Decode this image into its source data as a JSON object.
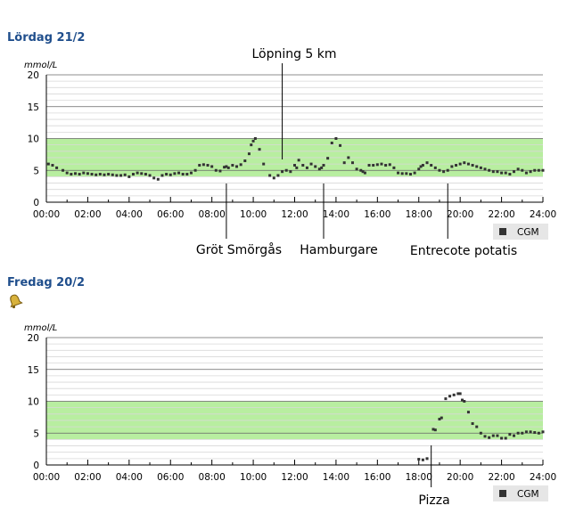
{
  "days": [
    {
      "title": "Lördag 21/2",
      "has_bell": false,
      "chart_data": {
        "type": "scatter",
        "title": "",
        "ylabel": "mmol/L",
        "xlabel": "",
        "xlim": [
          0,
          24
        ],
        "ylim": [
          0,
          20
        ],
        "x_ticks": [
          "00:00",
          "02:00",
          "04:00",
          "06:00",
          "08:00",
          "10:00",
          "12:00",
          "14:00",
          "16:00",
          "18:00",
          "20:00",
          "22:00",
          "24:00"
        ],
        "y_ticks": [
          "0",
          "5",
          "10",
          "15",
          "20"
        ],
        "target_range": [
          4,
          10
        ],
        "grid": true,
        "legend": "bottom-right",
        "series": [
          {
            "name": "CGM",
            "x": [
              0.1,
              0.3,
              0.5,
              0.8,
              1.0,
              1.2,
              1.4,
              1.6,
              1.8,
              2.0,
              2.2,
              2.4,
              2.6,
              2.8,
              3.0,
              3.2,
              3.4,
              3.6,
              3.8,
              4.0,
              4.2,
              4.4,
              4.6,
              4.8,
              5.0,
              5.2,
              5.4,
              5.6,
              5.8,
              6.0,
              6.2,
              6.4,
              6.6,
              6.8,
              7.0,
              7.2,
              7.4,
              7.6,
              7.8,
              8.0,
              8.2,
              8.4,
              8.6,
              8.7,
              8.8,
              9.0,
              9.2,
              9.4,
              9.6,
              9.8,
              9.9,
              10.0,
              10.1,
              10.3,
              10.5,
              10.8,
              11.0,
              11.2,
              11.4,
              11.6,
              11.8,
              12.0,
              12.1,
              12.2,
              12.4,
              12.6,
              12.8,
              13.0,
              13.2,
              13.3,
              13.4,
              13.6,
              13.8,
              14.0,
              14.2,
              14.4,
              14.6,
              14.8,
              15.0,
              15.2,
              15.3,
              15.4,
              15.6,
              15.8,
              16.0,
              16.2,
              16.4,
              16.6,
              16.8,
              17.0,
              17.2,
              17.4,
              17.6,
              17.8,
              18.0,
              18.1,
              18.2,
              18.4,
              18.6,
              18.8,
              19.0,
              19.2,
              19.4,
              19.6,
              19.8,
              20.0,
              20.2,
              20.4,
              20.6,
              20.8,
              21.0,
              21.2,
              21.4,
              21.6,
              21.8,
              22.0,
              22.2,
              22.4,
              22.6,
              22.8,
              23.0,
              23.2,
              23.4,
              23.6,
              23.8,
              24.0
            ],
            "y": [
              6.0,
              5.8,
              5.4,
              5.0,
              4.6,
              4.4,
              4.5,
              4.4,
              4.6,
              4.5,
              4.4,
              4.3,
              4.4,
              4.3,
              4.4,
              4.3,
              4.2,
              4.2,
              4.3,
              4.0,
              4.4,
              4.6,
              4.5,
              4.4,
              4.2,
              3.8,
              3.6,
              4.2,
              4.4,
              4.3,
              4.5,
              4.6,
              4.4,
              4.4,
              4.6,
              5.0,
              5.8,
              5.9,
              5.8,
              5.6,
              5.0,
              4.9,
              5.5,
              5.6,
              5.4,
              5.8,
              5.6,
              5.9,
              6.5,
              7.6,
              9.0,
              9.6,
              10.0,
              8.3,
              6.0,
              4.2,
              3.8,
              4.2,
              4.8,
              5.0,
              4.8,
              5.8,
              5.4,
              6.6,
              5.8,
              5.4,
              6.0,
              5.6,
              5.2,
              5.4,
              5.8,
              6.9,
              9.3,
              10.0,
              8.9,
              6.2,
              7.0,
              6.2,
              5.2,
              5.0,
              4.8,
              4.6,
              5.8,
              5.8,
              5.9,
              6.0,
              5.8,
              5.9,
              5.4,
              4.6,
              4.5,
              4.5,
              4.4,
              4.6,
              5.2,
              5.6,
              5.8,
              6.2,
              5.8,
              5.4,
              5.0,
              4.8,
              5.0,
              5.6,
              5.8,
              6.0,
              6.2,
              6.0,
              5.8,
              5.6,
              5.4,
              5.2,
              5.0,
              4.8,
              4.8,
              4.6,
              4.6,
              4.4,
              4.8,
              5.2,
              5.0,
              4.6,
              4.8,
              5.0,
              5.0,
              5.0
            ]
          }
        ],
        "annotations": [
          {
            "label": "Lopning",
            "text": "Löpning 5 km",
            "x": 11.4,
            "position": "above"
          },
          {
            "label": "Grot",
            "text": "Gröt Smörgås",
            "x": 8.7,
            "position": "below"
          },
          {
            "label": "Hamburgare",
            "text": "Hamburgare",
            "x": 13.4,
            "position": "below"
          },
          {
            "label": "Entrecote",
            "text": "Entrecote potatis",
            "x": 19.4,
            "position": "below"
          }
        ],
        "legend_label": "CGM"
      }
    },
    {
      "title": "Fredag 20/2",
      "has_bell": true,
      "chart_data": {
        "type": "scatter",
        "title": "",
        "ylabel": "mmol/L",
        "xlabel": "",
        "xlim": [
          0,
          24
        ],
        "ylim": [
          0,
          20
        ],
        "x_ticks": [
          "00:00",
          "02:00",
          "04:00",
          "06:00",
          "08:00",
          "10:00",
          "12:00",
          "14:00",
          "16:00",
          "18:00",
          "20:00",
          "22:00",
          "24:00"
        ],
        "y_ticks": [
          "0",
          "5",
          "10",
          "15",
          "20"
        ],
        "target_range": [
          4,
          10
        ],
        "grid": true,
        "legend": "bottom-right",
        "series": [
          {
            "name": "CGM",
            "x": [
              18.0,
              18.2,
              18.4,
              18.7,
              18.8,
              19.0,
              19.1,
              19.3,
              19.5,
              19.7,
              19.9,
              20.0,
              20.1,
              20.2,
              20.4,
              20.6,
              20.8,
              21.0,
              21.2,
              21.4,
              21.6,
              21.8,
              22.0,
              22.2,
              22.4,
              22.6,
              22.8,
              23.0,
              23.2,
              23.4,
              23.6,
              23.8,
              24.0
            ],
            "y": [
              0.9,
              0.8,
              1.0,
              5.6,
              5.5,
              7.2,
              7.4,
              10.4,
              10.8,
              11.0,
              11.2,
              11.2,
              10.2,
              10.0,
              8.3,
              6.5,
              6.0,
              5.0,
              4.5,
              4.3,
              4.6,
              4.6,
              4.2,
              4.2,
              4.8,
              4.6,
              5.0,
              5.0,
              5.2,
              5.2,
              5.1,
              5.0,
              5.2
            ]
          }
        ],
        "annotations": [
          {
            "label": "Pizza",
            "text": "Pizza",
            "x": 18.6,
            "position": "below"
          }
        ],
        "legend_label": "CGM"
      }
    }
  ],
  "colors": {
    "title": "#1f4e8c",
    "target_band": "#b8eea0",
    "grid_major": "#666666",
    "grid_minor": "#d8d8d8",
    "point": "#333333",
    "legend_bg": "#e6e6e6"
  }
}
